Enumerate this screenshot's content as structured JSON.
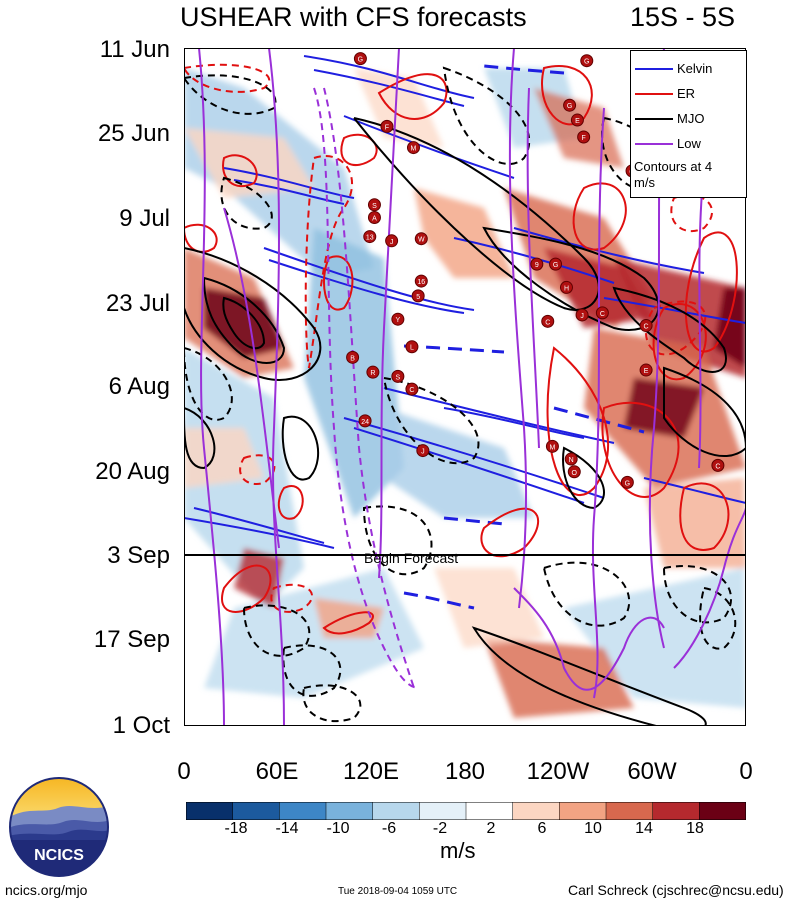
{
  "chart_data": {
    "type": "heatmap",
    "title": "USHEAR with CFS forecasts",
    "region_label": "15S - 5S",
    "y_tick_labels": [
      "11 Jun",
      "25 Jun",
      "9 Jul",
      "23 Jul",
      "6 Aug",
      "20 Aug",
      "3 Sep",
      "17 Sep",
      "1 Oct"
    ],
    "x_tick_labels": [
      "0",
      "60E",
      "120E",
      "180",
      "120W",
      "60W",
      "0"
    ],
    "x_range_deg_east": [
      0,
      360
    ],
    "y_range": [
      "11 Jun",
      "1 Oct"
    ],
    "forecast_start": "3 Sep",
    "forecast_label": "Begin Forecast",
    "legend": {
      "placement": "top-right",
      "entries": [
        {
          "name": "Kelvin",
          "color": "#1f1fe0"
        },
        {
          "name": "ER",
          "color": "#e01010"
        },
        {
          "name": "MJO",
          "color": "#000000"
        },
        {
          "name": "Low",
          "color": "#9a30d8"
        }
      ],
      "note": "Contours at 4 m/s"
    },
    "colorbar": {
      "labels": [
        "-18",
        "-14",
        "-10",
        "-6",
        "-2",
        "2",
        "6",
        "10",
        "14",
        "18"
      ],
      "colors": [
        "#08306b",
        "#1c5a9e",
        "#3d86c6",
        "#79b2dc",
        "#b7d7ec",
        "#e4f0f8",
        "#ffffff",
        "#fcd6c2",
        "#f2a383",
        "#d8684e",
        "#b5292e",
        "#6b0015"
      ],
      "units": "m/s"
    },
    "storm_markers": [
      {
        "label": "G",
        "x": 113,
        "week": 0.25
      },
      {
        "label": "G",
        "x": 258,
        "week": 0.3
      },
      {
        "label": "G",
        "x": 247,
        "week": 1.35
      },
      {
        "label": "E",
        "x": 252,
        "week": 1.7
      },
      {
        "label": "F",
        "x": 130,
        "week": 1.85
      },
      {
        "label": "F",
        "x": 256,
        "week": 2.1
      },
      {
        "label": "M",
        "x": 147,
        "week": 2.35
      },
      {
        "label": "G",
        "x": 287,
        "week": 2.9
      },
      {
        "label": "S",
        "x": 122,
        "week": 3.7
      },
      {
        "label": "A",
        "x": 122,
        "week": 4.0
      },
      {
        "label": "13",
        "x": 119,
        "week": 4.45
      },
      {
        "label": "J",
        "x": 133,
        "week": 4.55
      },
      {
        "label": "W",
        "x": 152,
        "week": 4.5
      },
      {
        "label": "9",
        "x": 226,
        "week": 5.1
      },
      {
        "label": "G",
        "x": 238,
        "week": 5.1
      },
      {
        "label": "16",
        "x": 152,
        "week": 5.5
      },
      {
        "label": "5",
        "x": 150,
        "week": 5.85
      },
      {
        "label": "H",
        "x": 245,
        "week": 5.65
      },
      {
        "label": "J",
        "x": 255,
        "week": 6.3
      },
      {
        "label": "Y",
        "x": 137,
        "week": 6.4
      },
      {
        "label": "C",
        "x": 233,
        "week": 6.45
      },
      {
        "label": "C",
        "x": 268,
        "week": 6.25
      },
      {
        "label": "C",
        "x": 296,
        "week": 6.55
      },
      {
        "label": "L",
        "x": 146,
        "week": 7.05
      },
      {
        "label": "B",
        "x": 108,
        "week": 7.3
      },
      {
        "label": "R",
        "x": 121,
        "week": 7.65
      },
      {
        "label": "S",
        "x": 137,
        "week": 7.75
      },
      {
        "label": "C",
        "x": 146,
        "week": 8.05
      },
      {
        "label": "E",
        "x": 296,
        "week": 7.6
      },
      {
        "label": "24",
        "x": 116,
        "week": 8.8
      },
      {
        "label": "J",
        "x": 153,
        "week": 9.5
      },
      {
        "label": "M",
        "x": 236,
        "week": 9.4
      },
      {
        "label": "N",
        "x": 248,
        "week": 9.7
      },
      {
        "label": "O",
        "x": 250,
        "week": 10.0
      },
      {
        "label": "G",
        "x": 284,
        "week": 10.25
      },
      {
        "label": "C",
        "x": 342,
        "week": 9.85
      }
    ]
  },
  "footer": {
    "logo_text": "NCICS",
    "left": "ncics.org/mjo",
    "timestamp": "Tue 2018-09-04 1059 UTC",
    "author": "Carl Schreck (cjschrec@ncsu.edu)"
  }
}
